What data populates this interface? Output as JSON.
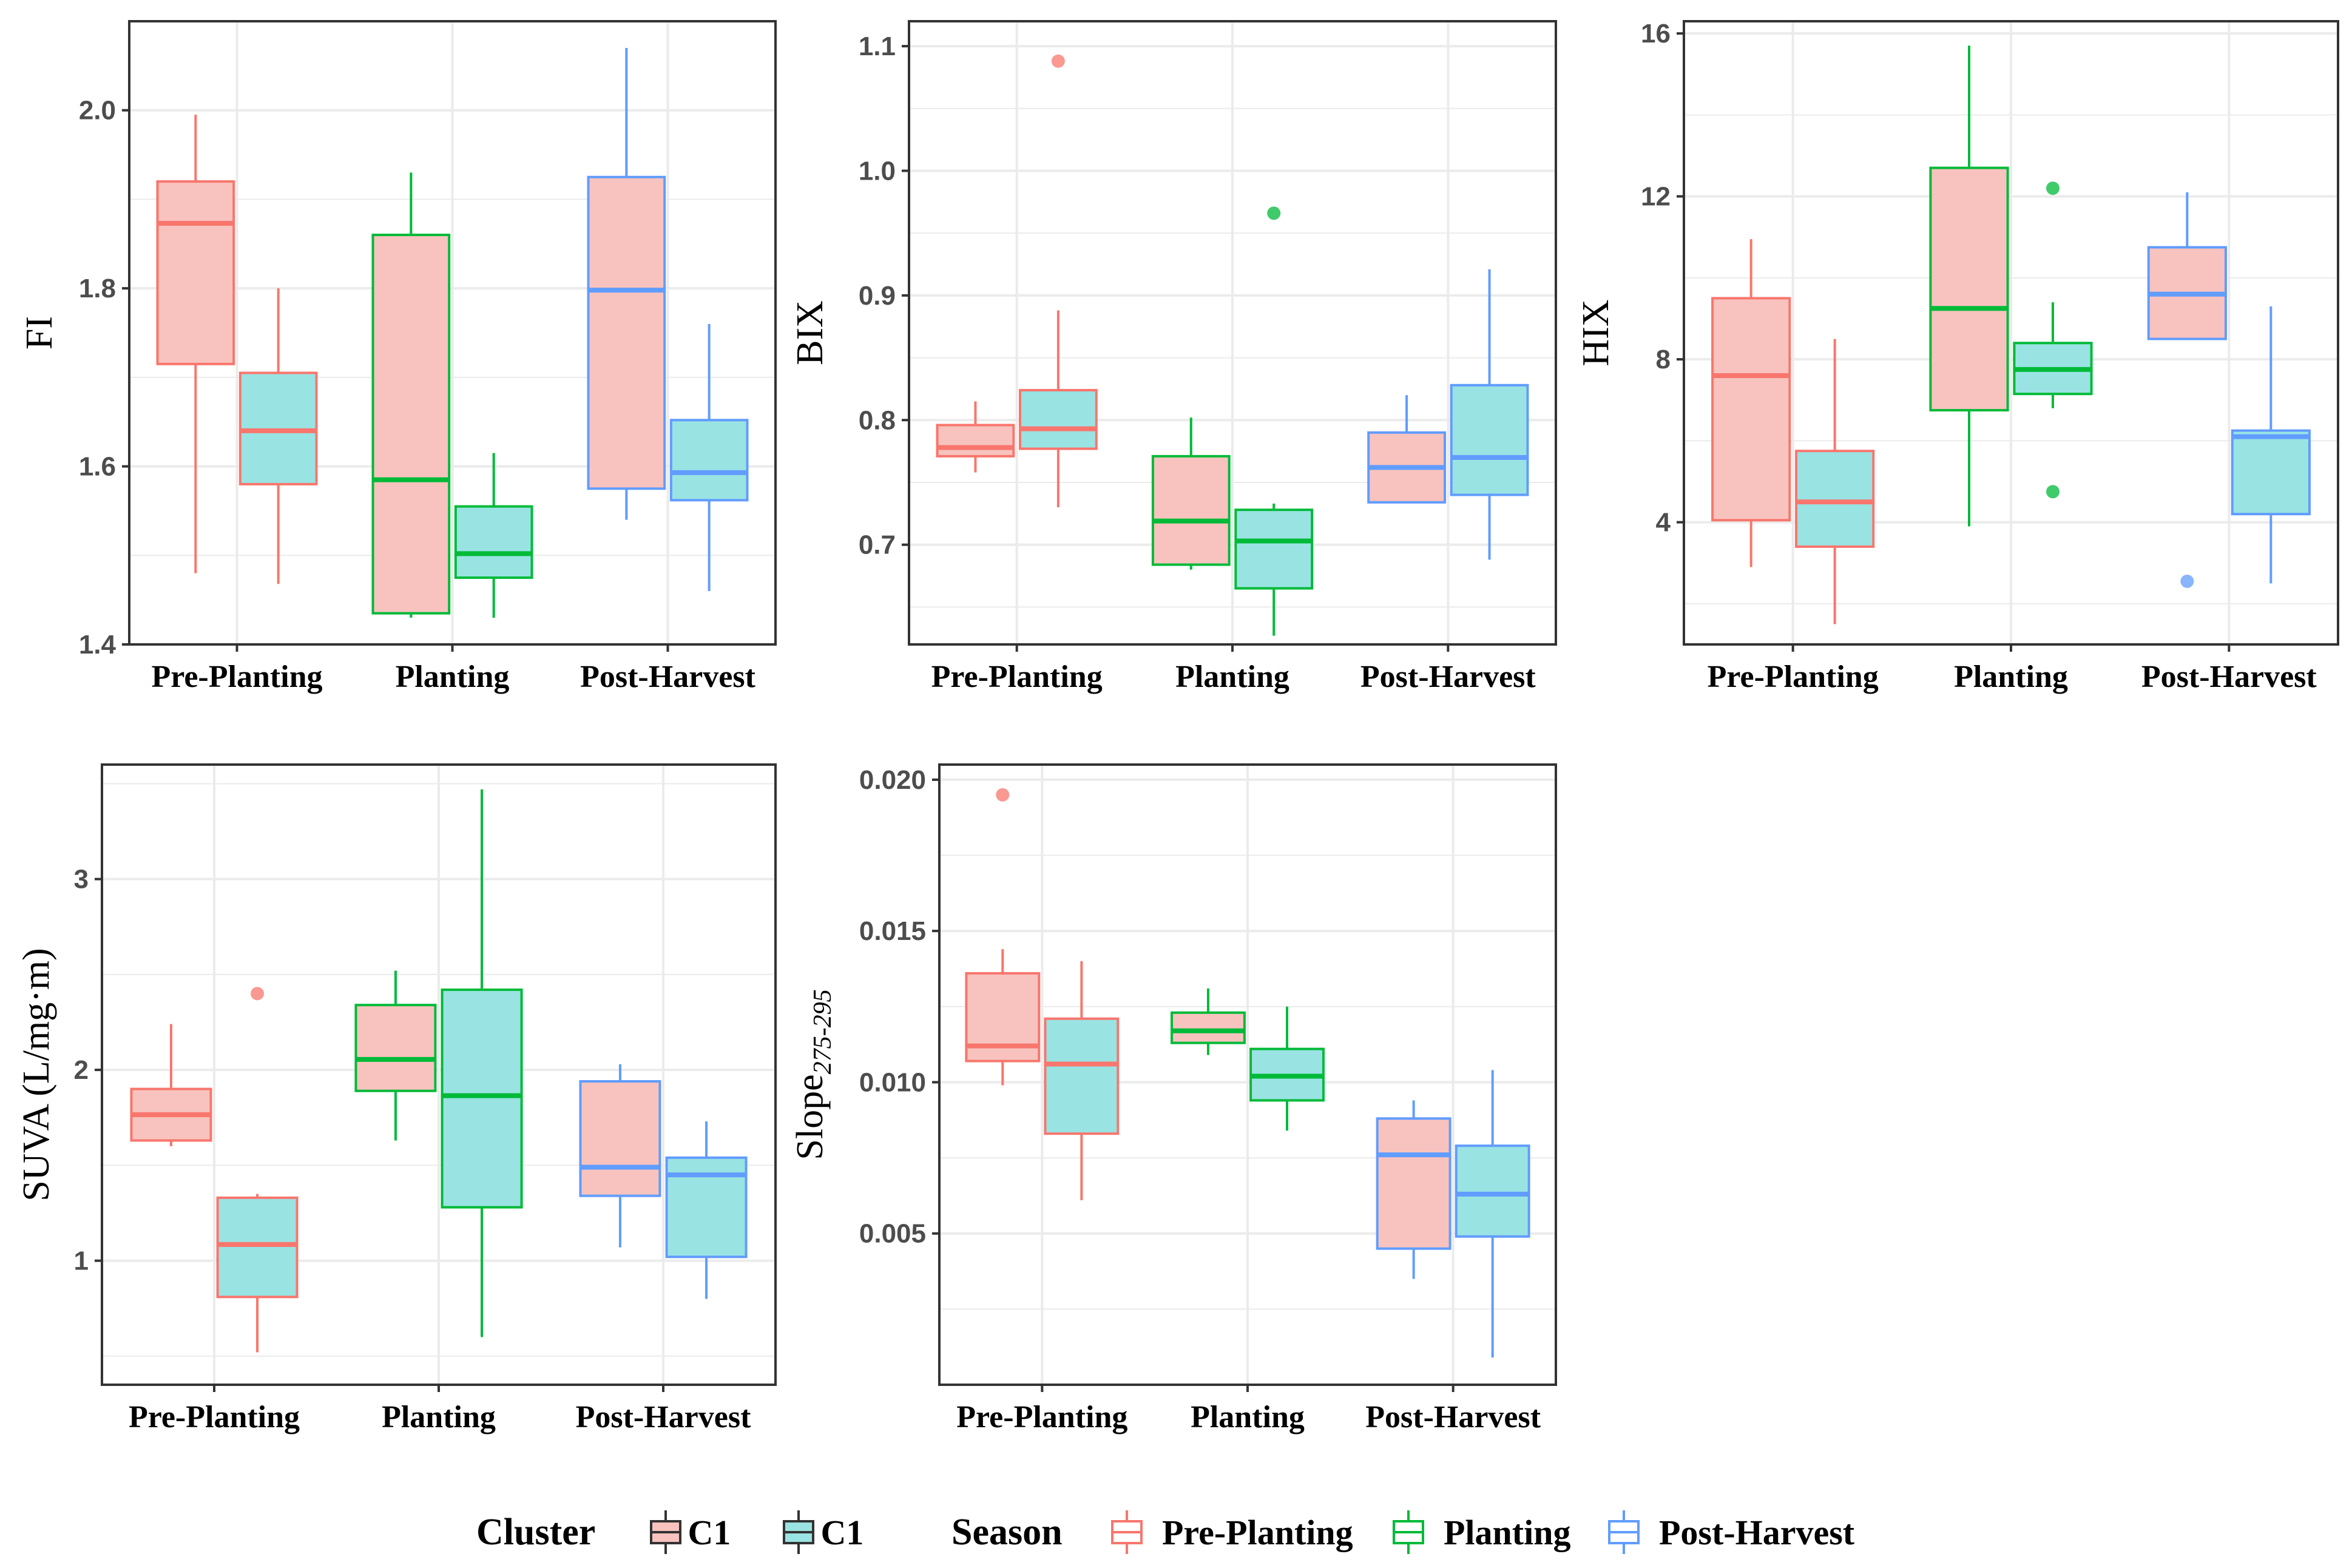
{
  "colors": {
    "pre_planting": "#F8766D",
    "planting": "#00BA38",
    "post_harvest": "#619CFF",
    "cluster_c1_fill": "#F8C3BE",
    "cluster_c1_alt_fill": "#9AE3E3",
    "grid": "#EBEBEB",
    "panel_border": "#333333"
  },
  "legend": {
    "cluster_title": "Cluster",
    "cluster_items": [
      "C1",
      "C1"
    ],
    "season_title": "Season",
    "season_items": [
      "Pre-Planting",
      "Planting",
      "Post-Harvest"
    ]
  },
  "chart_data": [
    {
      "type": "box",
      "ylabel": "FI",
      "ylabel_sub": "",
      "categories": [
        "Pre-Planting",
        "Planting",
        "Post-Harvest"
      ],
      "ylim": [
        1.4,
        2.1
      ],
      "yticks": [
        1.4,
        1.6,
        1.8,
        2.0
      ],
      "ytick_labels": [
        "1.4",
        "1.6",
        "1.8",
        "2.0"
      ],
      "boxes": [
        {
          "category": "Pre-Planting",
          "cluster": 0,
          "whisker_low": 1.48,
          "q1": 1.715,
          "median": 1.873,
          "q3": 1.92,
          "whisker_high": 1.995,
          "outliers": []
        },
        {
          "category": "Pre-Planting",
          "cluster": 1,
          "whisker_low": 1.468,
          "q1": 1.58,
          "median": 1.64,
          "q3": 1.705,
          "whisker_high": 1.8,
          "outliers": []
        },
        {
          "category": "Planting",
          "cluster": 0,
          "whisker_low": 1.43,
          "q1": 1.435,
          "median": 1.585,
          "q3": 1.86,
          "whisker_high": 1.93,
          "outliers": []
        },
        {
          "category": "Planting",
          "cluster": 1,
          "whisker_low": 1.43,
          "q1": 1.475,
          "median": 1.502,
          "q3": 1.555,
          "whisker_high": 1.615,
          "outliers": []
        },
        {
          "category": "Post-Harvest",
          "cluster": 0,
          "whisker_low": 1.54,
          "q1": 1.575,
          "median": 1.798,
          "q3": 1.925,
          "whisker_high": 2.07,
          "outliers": []
        },
        {
          "category": "Post-Harvest",
          "cluster": 1,
          "whisker_low": 1.46,
          "q1": 1.562,
          "median": 1.593,
          "q3": 1.652,
          "whisker_high": 1.76,
          "outliers": []
        }
      ]
    },
    {
      "type": "box",
      "ylabel": "BIX",
      "ylabel_sub": "",
      "categories": [
        "Pre-Planting",
        "Planting",
        "Post-Harvest"
      ],
      "ylim": [
        0.62,
        1.12
      ],
      "yticks": [
        0.7,
        0.8,
        0.9,
        1.0,
        1.1
      ],
      "ytick_labels": [
        "0.7",
        "0.8",
        "0.9",
        "1.0",
        "1.1"
      ],
      "boxes": [
        {
          "category": "Pre-Planting",
          "cluster": 0,
          "whisker_low": 0.758,
          "q1": 0.771,
          "median": 0.778,
          "q3": 0.796,
          "whisker_high": 0.815,
          "outliers": []
        },
        {
          "category": "Pre-Planting",
          "cluster": 1,
          "whisker_low": 0.73,
          "q1": 0.777,
          "median": 0.793,
          "q3": 0.824,
          "whisker_high": 0.888,
          "outliers": [
            1.088
          ]
        },
        {
          "category": "Planting",
          "cluster": 0,
          "whisker_low": 0.68,
          "q1": 0.684,
          "median": 0.719,
          "q3": 0.771,
          "whisker_high": 0.802,
          "outliers": []
        },
        {
          "category": "Planting",
          "cluster": 1,
          "whisker_low": 0.627,
          "q1": 0.665,
          "median": 0.703,
          "q3": 0.728,
          "whisker_high": 0.733,
          "outliers": [
            0.966
          ]
        },
        {
          "category": "Post-Harvest",
          "cluster": 0,
          "whisker_low": 0.734,
          "q1": 0.734,
          "median": 0.762,
          "q3": 0.79,
          "whisker_high": 0.82,
          "outliers": []
        },
        {
          "category": "Post-Harvest",
          "cluster": 1,
          "whisker_low": 0.688,
          "q1": 0.74,
          "median": 0.77,
          "q3": 0.828,
          "whisker_high": 0.921,
          "outliers": []
        }
      ]
    },
    {
      "type": "box",
      "ylabel": "HIX",
      "ylabel_sub": "",
      "categories": [
        "Pre-Planting",
        "Planting",
        "Post-Harvest"
      ],
      "ylim": [
        1.0,
        16.3
      ],
      "yticks": [
        4,
        8,
        12,
        16
      ],
      "ytick_labels": [
        "4",
        "8",
        "12",
        "16"
      ],
      "boxes": [
        {
          "category": "Pre-Planting",
          "cluster": 0,
          "whisker_low": 2.9,
          "q1": 4.05,
          "median": 7.6,
          "q3": 9.5,
          "whisker_high": 10.95,
          "outliers": []
        },
        {
          "category": "Pre-Planting",
          "cluster": 1,
          "whisker_low": 1.5,
          "q1": 3.4,
          "median": 4.5,
          "q3": 5.75,
          "whisker_high": 8.5,
          "outliers": []
        },
        {
          "category": "Planting",
          "cluster": 0,
          "whisker_low": 3.9,
          "q1": 6.75,
          "median": 9.25,
          "q3": 12.7,
          "whisker_high": 15.7,
          "outliers": []
        },
        {
          "category": "Planting",
          "cluster": 1,
          "whisker_low": 6.8,
          "q1": 7.15,
          "median": 7.75,
          "q3": 8.4,
          "whisker_high": 9.4,
          "outliers": [
            12.2,
            4.75
          ]
        },
        {
          "category": "Post-Harvest",
          "cluster": 0,
          "whisker_low": 8.5,
          "q1": 8.5,
          "median": 9.6,
          "q3": 10.75,
          "whisker_high": 12.1,
          "outliers": [
            2.55
          ]
        },
        {
          "category": "Post-Harvest",
          "cluster": 1,
          "whisker_low": 2.5,
          "q1": 4.2,
          "median": 6.1,
          "q3": 6.25,
          "whisker_high": 9.3,
          "outliers": []
        }
      ]
    },
    {
      "type": "box",
      "ylabel": "SUVA (L/mg·m)",
      "ylabel_sub": "",
      "categories": [
        "Pre-Planting",
        "Planting",
        "Post-Harvest"
      ],
      "ylim": [
        0.35,
        3.6
      ],
      "yticks": [
        1,
        2,
        3
      ],
      "ytick_labels": [
        "1",
        "2",
        "3"
      ],
      "boxes": [
        {
          "category": "Pre-Planting",
          "cluster": 0,
          "whisker_low": 1.6,
          "q1": 1.63,
          "median": 1.765,
          "q3": 1.9,
          "whisker_high": 2.24,
          "outliers": []
        },
        {
          "category": "Pre-Planting",
          "cluster": 1,
          "whisker_low": 0.52,
          "q1": 0.81,
          "median": 1.085,
          "q3": 1.33,
          "whisker_high": 1.35,
          "outliers": [
            2.4
          ]
        },
        {
          "category": "Planting",
          "cluster": 0,
          "whisker_low": 1.63,
          "q1": 1.89,
          "median": 2.055,
          "q3": 2.34,
          "whisker_high": 2.52,
          "outliers": []
        },
        {
          "category": "Planting",
          "cluster": 1,
          "whisker_low": 0.6,
          "q1": 1.28,
          "median": 1.865,
          "q3": 2.42,
          "whisker_high": 3.47,
          "outliers": []
        },
        {
          "category": "Post-Harvest",
          "cluster": 0,
          "whisker_low": 1.07,
          "q1": 1.34,
          "median": 1.49,
          "q3": 1.94,
          "whisker_high": 2.03,
          "outliers": []
        },
        {
          "category": "Post-Harvest",
          "cluster": 1,
          "whisker_low": 0.8,
          "q1": 1.02,
          "median": 1.45,
          "q3": 1.54,
          "whisker_high": 1.73,
          "outliers": []
        }
      ]
    },
    {
      "type": "box",
      "ylabel": "Slope",
      "ylabel_sub": "275-295",
      "categories": [
        "Pre-Planting",
        "Planting",
        "Post-Harvest"
      ],
      "ylim": [
        0.0,
        0.0205
      ],
      "yticks": [
        0.005,
        0.01,
        0.015,
        0.02
      ],
      "ytick_labels": [
        "0.005",
        "0.010",
        "0.015",
        "0.020"
      ],
      "boxes": [
        {
          "category": "Pre-Planting",
          "cluster": 0,
          "whisker_low": 0.0099,
          "q1": 0.0107,
          "median": 0.0112,
          "q3": 0.0136,
          "whisker_high": 0.0144,
          "outliers": [
            0.0195
          ]
        },
        {
          "category": "Pre-Planting",
          "cluster": 1,
          "whisker_low": 0.0061,
          "q1": 0.0083,
          "median": 0.0106,
          "q3": 0.0121,
          "whisker_high": 0.014,
          "outliers": []
        },
        {
          "category": "Planting",
          "cluster": 0,
          "whisker_low": 0.0109,
          "q1": 0.0113,
          "median": 0.0117,
          "q3": 0.0123,
          "whisker_high": 0.0131,
          "outliers": []
        },
        {
          "category": "Planting",
          "cluster": 1,
          "whisker_low": 0.0084,
          "q1": 0.0094,
          "median": 0.0102,
          "q3": 0.0111,
          "whisker_high": 0.0125,
          "outliers": []
        },
        {
          "category": "Post-Harvest",
          "cluster": 0,
          "whisker_low": 0.0035,
          "q1": 0.0045,
          "median": 0.0076,
          "q3": 0.0088,
          "whisker_high": 0.0094,
          "outliers": []
        },
        {
          "category": "Post-Harvest",
          "cluster": 1,
          "whisker_low": 0.0009,
          "q1": 0.0049,
          "median": 0.0063,
          "q3": 0.0079,
          "whisker_high": 0.0104,
          "outliers": []
        }
      ]
    }
  ]
}
